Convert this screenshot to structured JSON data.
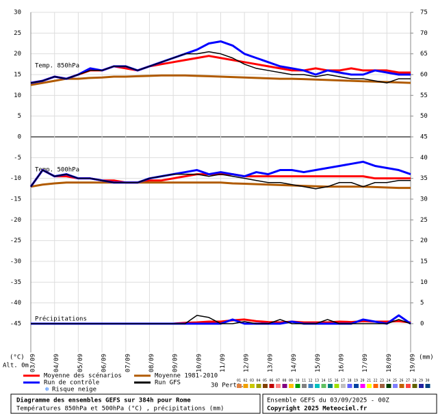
{
  "chart_data": {
    "type": "line",
    "title": "Diagramme des ensembles GEFS sur 384h pour Rome",
    "subtitle": "Températures 850hPa et 500hPa (°C) , précipitations (mm)",
    "run_label": "Ensemble GEFS du 03/09/2025 - 00Z",
    "copyright": "Copyright 2025 Meteociel.fr",
    "y_unit": "(°C)",
    "altitude": "Alt. 0m",
    "y2_unit": "(mm)",
    "perturbations_label": "30 Perts.",
    "snow_label": "Risque neige",
    "xlim": [
      0,
      16
    ],
    "xticks": [
      {
        "value": 0,
        "label": "03/09"
      },
      {
        "value": 1,
        "label": "04/09"
      },
      {
        "value": 2,
        "label": "05/09"
      },
      {
        "value": 3,
        "label": "06/09"
      },
      {
        "value": 4,
        "label": "07/09"
      },
      {
        "value": 5,
        "label": "08/09"
      },
      {
        "value": 6,
        "label": "09/09"
      },
      {
        "value": 7,
        "label": "10/09"
      },
      {
        "value": 8,
        "label": "11/09"
      },
      {
        "value": 9,
        "label": "12/09"
      },
      {
        "value": 10,
        "label": "13/09"
      },
      {
        "value": 11,
        "label": "14/09"
      },
      {
        "value": 12,
        "label": "15/09"
      },
      {
        "value": 13,
        "label": "16/09"
      },
      {
        "value": 14,
        "label": "17/09"
      },
      {
        "value": 15,
        "label": "18/09"
      },
      {
        "value": 16,
        "label": "19/09"
      }
    ],
    "ylim": [
      -45,
      30
    ],
    "yticks": [
      30,
      25,
      20,
      15,
      10,
      5,
      0,
      -5,
      -10,
      -15,
      -20,
      -25,
      -30,
      -35,
      -40,
      -45
    ],
    "y2lim": [
      0,
      75
    ],
    "y2ticks": [
      75,
      70,
      65,
      60,
      55,
      50,
      45,
      40,
      35,
      30,
      25,
      20,
      15,
      10,
      5,
      0
    ],
    "grid": true,
    "x": [
      0,
      0.5,
      1,
      1.5,
      2,
      2.5,
      3,
      3.5,
      4,
      4.5,
      5,
      5.5,
      6,
      6.5,
      7,
      7.5,
      8,
      8.5,
      9,
      9.5,
      10,
      10.5,
      11,
      11.5,
      12,
      12.5,
      13,
      13.5,
      14,
      14.5,
      15,
      15.5,
      16
    ],
    "panels": [
      {
        "label": "Temp. 850hPa",
        "series": [
          {
            "name": "Moyenne des scénarios",
            "color": "#ff0000",
            "values": [
              13,
              13.5,
              14.5,
              14,
              15,
              16,
              16,
              17,
              16.5,
              16,
              17,
              17.5,
              18,
              18.5,
              19,
              19.5,
              19,
              18.5,
              18,
              17.5,
              17,
              16.5,
              16,
              16,
              16.5,
              16,
              16,
              16.5,
              16,
              16,
              16,
              15.5,
              15.5
            ]
          },
          {
            "name": "Moyenne 1981-2010",
            "color": "#b05a00",
            "values": [
              12.5,
              13,
              13.5,
              14,
              14,
              14.2,
              14.3,
              14.5,
              14.5,
              14.6,
              14.7,
              14.8,
              14.8,
              14.8,
              14.7,
              14.6,
              14.5,
              14.4,
              14.3,
              14.2,
              14.1,
              14,
              14,
              13.9,
              13.8,
              13.7,
              13.6,
              13.5,
              13.4,
              13.3,
              13.2,
              13.1,
              13
            ]
          },
          {
            "name": "Run de contrôle",
            "color": "#0000ff",
            "values": [
              13,
              13.5,
              14.5,
              14,
              15,
              16.5,
              16,
              17,
              17,
              16,
              17,
              18,
              19,
              20,
              21,
              22.5,
              23,
              22,
              20,
              19,
              18,
              17,
              16.5,
              16,
              15,
              16,
              15.5,
              15,
              15,
              16,
              15.5,
              15,
              15
            ]
          },
          {
            "name": "Run GFS",
            "color": "#000000",
            "values": [
              13,
              13.5,
              14.5,
              14,
              15,
              16,
              16,
              17,
              17,
              16,
              17,
              18,
              19,
              20,
              20,
              20.5,
              20,
              19,
              17.5,
              16.5,
              16,
              15.5,
              15,
              15,
              14.5,
              15,
              14.5,
              14,
              14,
              13.5,
              13,
              14,
              14
            ]
          }
        ]
      },
      {
        "label": "Temp. 500hPa",
        "series": [
          {
            "name": "Moyenne des scénarios",
            "color": "#ff0000",
            "values": [
              -12,
              -8,
              -9.5,
              -9.5,
              -10,
              -10,
              -10.5,
              -10.5,
              -11,
              -11,
              -10.5,
              -10.5,
              -10,
              -9.5,
              -9,
              -9,
              -9,
              -9,
              -9.5,
              -9.5,
              -9.5,
              -9.5,
              -9.5,
              -9.5,
              -9.5,
              -9.5,
              -9.5,
              -9.5,
              -9.5,
              -10,
              -10,
              -10,
              -10
            ]
          },
          {
            "name": "Moyenne 1981-2010",
            "color": "#b05a00",
            "values": [
              -12,
              -11.5,
              -11.2,
              -11,
              -11,
              -11,
              -11,
              -11,
              -11,
              -11,
              -11,
              -11,
              -11,
              -11,
              -11,
              -11,
              -11,
              -11.2,
              -11.3,
              -11.4,
              -11.5,
              -11.6,
              -11.7,
              -11.8,
              -11.9,
              -12,
              -12,
              -12,
              -12,
              -12.1,
              -12.2,
              -12.3,
              -12.3
            ]
          },
          {
            "name": "Run de contrôle",
            "color": "#0000ff",
            "values": [
              -12,
              -8,
              -9.5,
              -9,
              -10,
              -10,
              -10.5,
              -11,
              -11,
              -11,
              -10,
              -9.5,
              -9,
              -8.5,
              -8,
              -9,
              -8.5,
              -9,
              -9.5,
              -8.5,
              -9,
              -8,
              -8,
              -8.5,
              -8,
              -7.5,
              -7,
              -6.5,
              -6,
              -7,
              -7.5,
              -8,
              -9
            ]
          },
          {
            "name": "Run GFS",
            "color": "#000000",
            "values": [
              -12,
              -8,
              -9.5,
              -9,
              -10,
              -10,
              -10.5,
              -11,
              -11,
              -11,
              -10,
              -9.5,
              -9,
              -9,
              -9,
              -9.5,
              -9,
              -9.5,
              -10,
              -10.5,
              -11,
              -11,
              -11.5,
              -12,
              -12.5,
              -12,
              -11,
              -11,
              -12,
              -11,
              -11,
              -10.5,
              -10.5
            ]
          }
        ]
      },
      {
        "label": "Précipitations",
        "axis": "y2",
        "series": [
          {
            "name": "Moyenne des scénarios",
            "color": "#ff0000",
            "values": [
              0,
              0,
              0,
              0,
              0,
              0,
              0,
              0,
              0,
              0,
              0,
              0,
              0,
              0.2,
              0.3,
              0.5,
              0.5,
              0.8,
              1,
              0.6,
              0.4,
              0.3,
              0.5,
              0.3,
              0.3,
              0.3,
              0.5,
              0.4,
              0.6,
              0.5,
              0.5,
              0.6,
              0.3
            ]
          },
          {
            "name": "Run de contrôle",
            "color": "#0000ff",
            "values": [
              0,
              0,
              0,
              0,
              0,
              0,
              0,
              0,
              0,
              0,
              0,
              0,
              0,
              0,
              0,
              0,
              0,
              1,
              0,
              0,
              0,
              0,
              0.5,
              0,
              0,
              0,
              0,
              0,
              1,
              0.5,
              0,
              2,
              0
            ]
          },
          {
            "name": "Run GFS",
            "color": "#000000",
            "values": [
              0,
              0,
              0,
              0,
              0,
              0,
              0,
              0,
              0,
              0,
              0,
              0,
              0,
              0,
              2,
              1.5,
              0,
              0,
              0.5,
              0,
              0,
              1,
              0,
              0,
              0,
              1,
              0,
              0,
              0,
              0,
              0,
              1,
              0
            ]
          }
        ]
      }
    ],
    "perturbations": [
      {
        "name": "01",
        "color": "#e08040"
      },
      {
        "name": "02",
        "color": "#f0a000"
      },
      {
        "name": "03",
        "color": "#c8c800"
      },
      {
        "name": "04",
        "color": "#a0a000"
      },
      {
        "name": "05",
        "color": "#804000"
      },
      {
        "name": "06",
        "color": "#c00000"
      },
      {
        "name": "07",
        "color": "#ff8080"
      },
      {
        "name": "08",
        "color": "#800080"
      },
      {
        "name": "09",
        "color": "#ffc000"
      },
      {
        "name": "10",
        "color": "#00a000"
      },
      {
        "name": "11",
        "color": "#808080"
      },
      {
        "name": "12",
        "color": "#4080c0"
      },
      {
        "name": "13",
        "color": "#00c0c0"
      },
      {
        "name": "14",
        "color": "#60c060"
      },
      {
        "name": "15",
        "color": "#008080"
      },
      {
        "name": "16",
        "color": "#a0e000"
      },
      {
        "name": "17",
        "color": "#c0c0c0"
      },
      {
        "name": "18",
        "color": "#6060ff"
      },
      {
        "name": "19",
        "color": "#0040a0"
      },
      {
        "name": "20",
        "color": "#ff00ff"
      },
      {
        "name": "21",
        "color": "#ffff00"
      },
      {
        "name": "22",
        "color": "#ff6000"
      },
      {
        "name": "23",
        "color": "#a06040"
      },
      {
        "name": "24",
        "color": "#004000"
      },
      {
        "name": "25",
        "color": "#8080ff"
      },
      {
        "name": "26",
        "color": "#c06000"
      },
      {
        "name": "27",
        "color": "#ff4040"
      },
      {
        "name": "28",
        "color": "#606000"
      },
      {
        "name": "29",
        "color": "#2020a0"
      },
      {
        "name": "30",
        "color": "#004080"
      }
    ]
  }
}
